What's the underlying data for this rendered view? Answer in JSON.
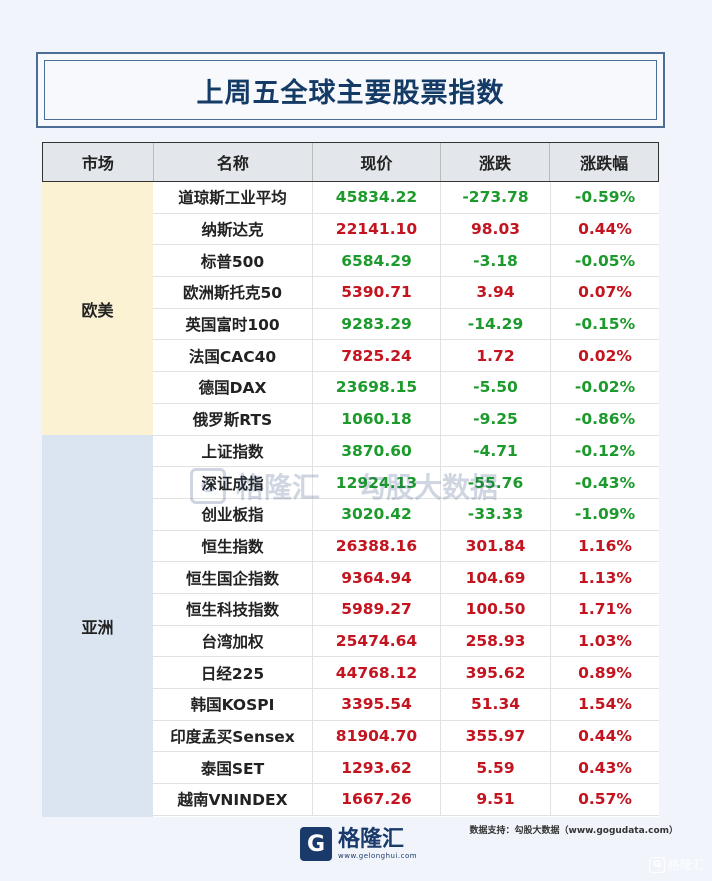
{
  "title": "上周五全球主要股票指数",
  "headers": {
    "market": "市场",
    "name": "名称",
    "price": "现价",
    "change": "涨跌",
    "pct": "涨跌幅"
  },
  "markets": {
    "europe_us": "欧美",
    "asia": "亚洲"
  },
  "rows": [
    {
      "name": "道琼斯工业平均",
      "price": "45834.22",
      "change": "-273.78",
      "pct": "-0.59%",
      "dir": "down"
    },
    {
      "name": "纳斯达克",
      "price": "22141.10",
      "change": "98.03",
      "pct": "0.44%",
      "dir": "up"
    },
    {
      "name": "标普500",
      "price": "6584.29",
      "change": "-3.18",
      "pct": "-0.05%",
      "dir": "down"
    },
    {
      "name": "欧洲斯托克50",
      "price": "5390.71",
      "change": "3.94",
      "pct": "0.07%",
      "dir": "up"
    },
    {
      "name": "英国富时100",
      "price": "9283.29",
      "change": "-14.29",
      "pct": "-0.15%",
      "dir": "down"
    },
    {
      "name": "法国CAC40",
      "price": "7825.24",
      "change": "1.72",
      "pct": "0.02%",
      "dir": "up"
    },
    {
      "name": "德国DAX",
      "price": "23698.15",
      "change": "-5.50",
      "pct": "-0.02%",
      "dir": "down"
    },
    {
      "name": "俄罗斯RTS",
      "price": "1060.18",
      "change": "-9.25",
      "pct": "-0.86%",
      "dir": "down"
    },
    {
      "name": "上证指数",
      "price": "3870.60",
      "change": "-4.71",
      "pct": "-0.12%",
      "dir": "down"
    },
    {
      "name": "深证成指",
      "price": "12924.13",
      "change": "-55.76",
      "pct": "-0.43%",
      "dir": "down"
    },
    {
      "name": "创业板指",
      "price": "3020.42",
      "change": "-33.33",
      "pct": "-1.09%",
      "dir": "down"
    },
    {
      "name": "恒生指数",
      "price": "26388.16",
      "change": "301.84",
      "pct": "1.16%",
      "dir": "up"
    },
    {
      "name": "恒生国企指数",
      "price": "9364.94",
      "change": "104.69",
      "pct": "1.13%",
      "dir": "up"
    },
    {
      "name": "恒生科技指数",
      "price": "5989.27",
      "change": "100.50",
      "pct": "1.71%",
      "dir": "up"
    },
    {
      "name": "台湾加权",
      "price": "25474.64",
      "change": "258.93",
      "pct": "1.03%",
      "dir": "up"
    },
    {
      "name": "日经225",
      "price": "44768.12",
      "change": "395.62",
      "pct": "0.89%",
      "dir": "up"
    },
    {
      "name": "韩国KOSPI",
      "price": "3395.54",
      "change": "51.34",
      "pct": "1.54%",
      "dir": "up"
    },
    {
      "name": "印度孟买Sensex",
      "price": "81904.70",
      "change": "355.97",
      "pct": "0.44%",
      "dir": "up"
    },
    {
      "name": "泰国SET",
      "price": "1293.62",
      "change": "5.59",
      "pct": "0.43%",
      "dir": "up"
    },
    {
      "name": "越南VNINDEX",
      "price": "1667.26",
      "change": "9.51",
      "pct": "0.57%",
      "dir": "up"
    }
  ],
  "colors": {
    "up": "#c3141f",
    "down": "#1c9a2c",
    "title": "#143a66"
  },
  "watermark": {
    "brand": "格隆汇",
    "url": "www.gelonghui.com",
    "data_brand": "勾股大数据",
    "data_url": "www.gogudata.com"
  },
  "footer": {
    "logo_cn": "格隆汇",
    "logo_url": "www.gelonghui.com",
    "source": "数据支持：勾股大数据（www.gogudata.com）",
    "corner": "格隆汇"
  }
}
